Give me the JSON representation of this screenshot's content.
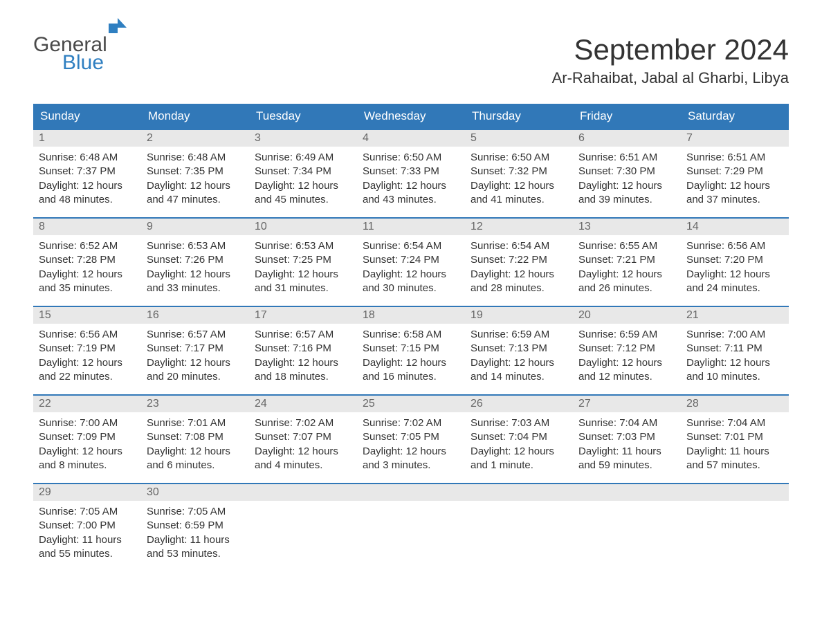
{
  "logo": {
    "general": "General",
    "blue": "Blue",
    "icon_color": "#2f7fc1"
  },
  "title": "September 2024",
  "location": "Ar-Rahaibat, Jabal al Gharbi, Libya",
  "day_headers": [
    "Sunday",
    "Monday",
    "Tuesday",
    "Wednesday",
    "Thursday",
    "Friday",
    "Saturday"
  ],
  "colors": {
    "header_bg": "#3178b8",
    "header_text": "#ffffff",
    "daynum_bg": "#e8e8e8",
    "daynum_text": "#666666",
    "body_text": "#333333",
    "divider": "#3178b8",
    "background": "#ffffff"
  },
  "weeks": [
    [
      {
        "num": "1",
        "sunrise": "Sunrise: 6:48 AM",
        "sunset": "Sunset: 7:37 PM",
        "daylight1": "Daylight: 12 hours",
        "daylight2": "and 48 minutes."
      },
      {
        "num": "2",
        "sunrise": "Sunrise: 6:48 AM",
        "sunset": "Sunset: 7:35 PM",
        "daylight1": "Daylight: 12 hours",
        "daylight2": "and 47 minutes."
      },
      {
        "num": "3",
        "sunrise": "Sunrise: 6:49 AM",
        "sunset": "Sunset: 7:34 PM",
        "daylight1": "Daylight: 12 hours",
        "daylight2": "and 45 minutes."
      },
      {
        "num": "4",
        "sunrise": "Sunrise: 6:50 AM",
        "sunset": "Sunset: 7:33 PM",
        "daylight1": "Daylight: 12 hours",
        "daylight2": "and 43 minutes."
      },
      {
        "num": "5",
        "sunrise": "Sunrise: 6:50 AM",
        "sunset": "Sunset: 7:32 PM",
        "daylight1": "Daylight: 12 hours",
        "daylight2": "and 41 minutes."
      },
      {
        "num": "6",
        "sunrise": "Sunrise: 6:51 AM",
        "sunset": "Sunset: 7:30 PM",
        "daylight1": "Daylight: 12 hours",
        "daylight2": "and 39 minutes."
      },
      {
        "num": "7",
        "sunrise": "Sunrise: 6:51 AM",
        "sunset": "Sunset: 7:29 PM",
        "daylight1": "Daylight: 12 hours",
        "daylight2": "and 37 minutes."
      }
    ],
    [
      {
        "num": "8",
        "sunrise": "Sunrise: 6:52 AM",
        "sunset": "Sunset: 7:28 PM",
        "daylight1": "Daylight: 12 hours",
        "daylight2": "and 35 minutes."
      },
      {
        "num": "9",
        "sunrise": "Sunrise: 6:53 AM",
        "sunset": "Sunset: 7:26 PM",
        "daylight1": "Daylight: 12 hours",
        "daylight2": "and 33 minutes."
      },
      {
        "num": "10",
        "sunrise": "Sunrise: 6:53 AM",
        "sunset": "Sunset: 7:25 PM",
        "daylight1": "Daylight: 12 hours",
        "daylight2": "and 31 minutes."
      },
      {
        "num": "11",
        "sunrise": "Sunrise: 6:54 AM",
        "sunset": "Sunset: 7:24 PM",
        "daylight1": "Daylight: 12 hours",
        "daylight2": "and 30 minutes."
      },
      {
        "num": "12",
        "sunrise": "Sunrise: 6:54 AM",
        "sunset": "Sunset: 7:22 PM",
        "daylight1": "Daylight: 12 hours",
        "daylight2": "and 28 minutes."
      },
      {
        "num": "13",
        "sunrise": "Sunrise: 6:55 AM",
        "sunset": "Sunset: 7:21 PM",
        "daylight1": "Daylight: 12 hours",
        "daylight2": "and 26 minutes."
      },
      {
        "num": "14",
        "sunrise": "Sunrise: 6:56 AM",
        "sunset": "Sunset: 7:20 PM",
        "daylight1": "Daylight: 12 hours",
        "daylight2": "and 24 minutes."
      }
    ],
    [
      {
        "num": "15",
        "sunrise": "Sunrise: 6:56 AM",
        "sunset": "Sunset: 7:19 PM",
        "daylight1": "Daylight: 12 hours",
        "daylight2": "and 22 minutes."
      },
      {
        "num": "16",
        "sunrise": "Sunrise: 6:57 AM",
        "sunset": "Sunset: 7:17 PM",
        "daylight1": "Daylight: 12 hours",
        "daylight2": "and 20 minutes."
      },
      {
        "num": "17",
        "sunrise": "Sunrise: 6:57 AM",
        "sunset": "Sunset: 7:16 PM",
        "daylight1": "Daylight: 12 hours",
        "daylight2": "and 18 minutes."
      },
      {
        "num": "18",
        "sunrise": "Sunrise: 6:58 AM",
        "sunset": "Sunset: 7:15 PM",
        "daylight1": "Daylight: 12 hours",
        "daylight2": "and 16 minutes."
      },
      {
        "num": "19",
        "sunrise": "Sunrise: 6:59 AM",
        "sunset": "Sunset: 7:13 PM",
        "daylight1": "Daylight: 12 hours",
        "daylight2": "and 14 minutes."
      },
      {
        "num": "20",
        "sunrise": "Sunrise: 6:59 AM",
        "sunset": "Sunset: 7:12 PM",
        "daylight1": "Daylight: 12 hours",
        "daylight2": "and 12 minutes."
      },
      {
        "num": "21",
        "sunrise": "Sunrise: 7:00 AM",
        "sunset": "Sunset: 7:11 PM",
        "daylight1": "Daylight: 12 hours",
        "daylight2": "and 10 minutes."
      }
    ],
    [
      {
        "num": "22",
        "sunrise": "Sunrise: 7:00 AM",
        "sunset": "Sunset: 7:09 PM",
        "daylight1": "Daylight: 12 hours",
        "daylight2": "and 8 minutes."
      },
      {
        "num": "23",
        "sunrise": "Sunrise: 7:01 AM",
        "sunset": "Sunset: 7:08 PM",
        "daylight1": "Daylight: 12 hours",
        "daylight2": "and 6 minutes."
      },
      {
        "num": "24",
        "sunrise": "Sunrise: 7:02 AM",
        "sunset": "Sunset: 7:07 PM",
        "daylight1": "Daylight: 12 hours",
        "daylight2": "and 4 minutes."
      },
      {
        "num": "25",
        "sunrise": "Sunrise: 7:02 AM",
        "sunset": "Sunset: 7:05 PM",
        "daylight1": "Daylight: 12 hours",
        "daylight2": "and 3 minutes."
      },
      {
        "num": "26",
        "sunrise": "Sunrise: 7:03 AM",
        "sunset": "Sunset: 7:04 PM",
        "daylight1": "Daylight: 12 hours",
        "daylight2": "and 1 minute."
      },
      {
        "num": "27",
        "sunrise": "Sunrise: 7:04 AM",
        "sunset": "Sunset: 7:03 PM",
        "daylight1": "Daylight: 11 hours",
        "daylight2": "and 59 minutes."
      },
      {
        "num": "28",
        "sunrise": "Sunrise: 7:04 AM",
        "sunset": "Sunset: 7:01 PM",
        "daylight1": "Daylight: 11 hours",
        "daylight2": "and 57 minutes."
      }
    ],
    [
      {
        "num": "29",
        "sunrise": "Sunrise: 7:05 AM",
        "sunset": "Sunset: 7:00 PM",
        "daylight1": "Daylight: 11 hours",
        "daylight2": "and 55 minutes."
      },
      {
        "num": "30",
        "sunrise": "Sunrise: 7:05 AM",
        "sunset": "Sunset: 6:59 PM",
        "daylight1": "Daylight: 11 hours",
        "daylight2": "and 53 minutes."
      },
      null,
      null,
      null,
      null,
      null
    ]
  ]
}
